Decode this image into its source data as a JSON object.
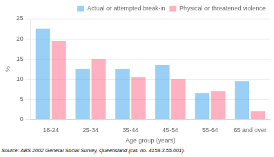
{
  "chart_data": {
    "type": "bar",
    "categories": [
      "18-24",
      "25-34",
      "35-44",
      "45-54",
      "55-64",
      "65 and over"
    ],
    "series": [
      {
        "name": "Actual or attempted break-in",
        "values": [
          22.5,
          12.5,
          12.5,
          13.5,
          6.5,
          9.5
        ]
      },
      {
        "name": "Physical or threatened violence",
        "values": [
          19.5,
          15.0,
          10.5,
          10.0,
          7.0,
          2.0
        ]
      }
    ],
    "xlabel": "Age group (years)",
    "ylabel": "%",
    "ylim": [
      0,
      25
    ],
    "yticks": [
      0,
      5,
      10,
      15,
      20,
      25
    ],
    "grid": true,
    "legend": "upper right",
    "annotations": [
      "Source: ABS 2002 General Social Survey, Queensland (cat. no. 4159.3.55.001)."
    ]
  }
}
